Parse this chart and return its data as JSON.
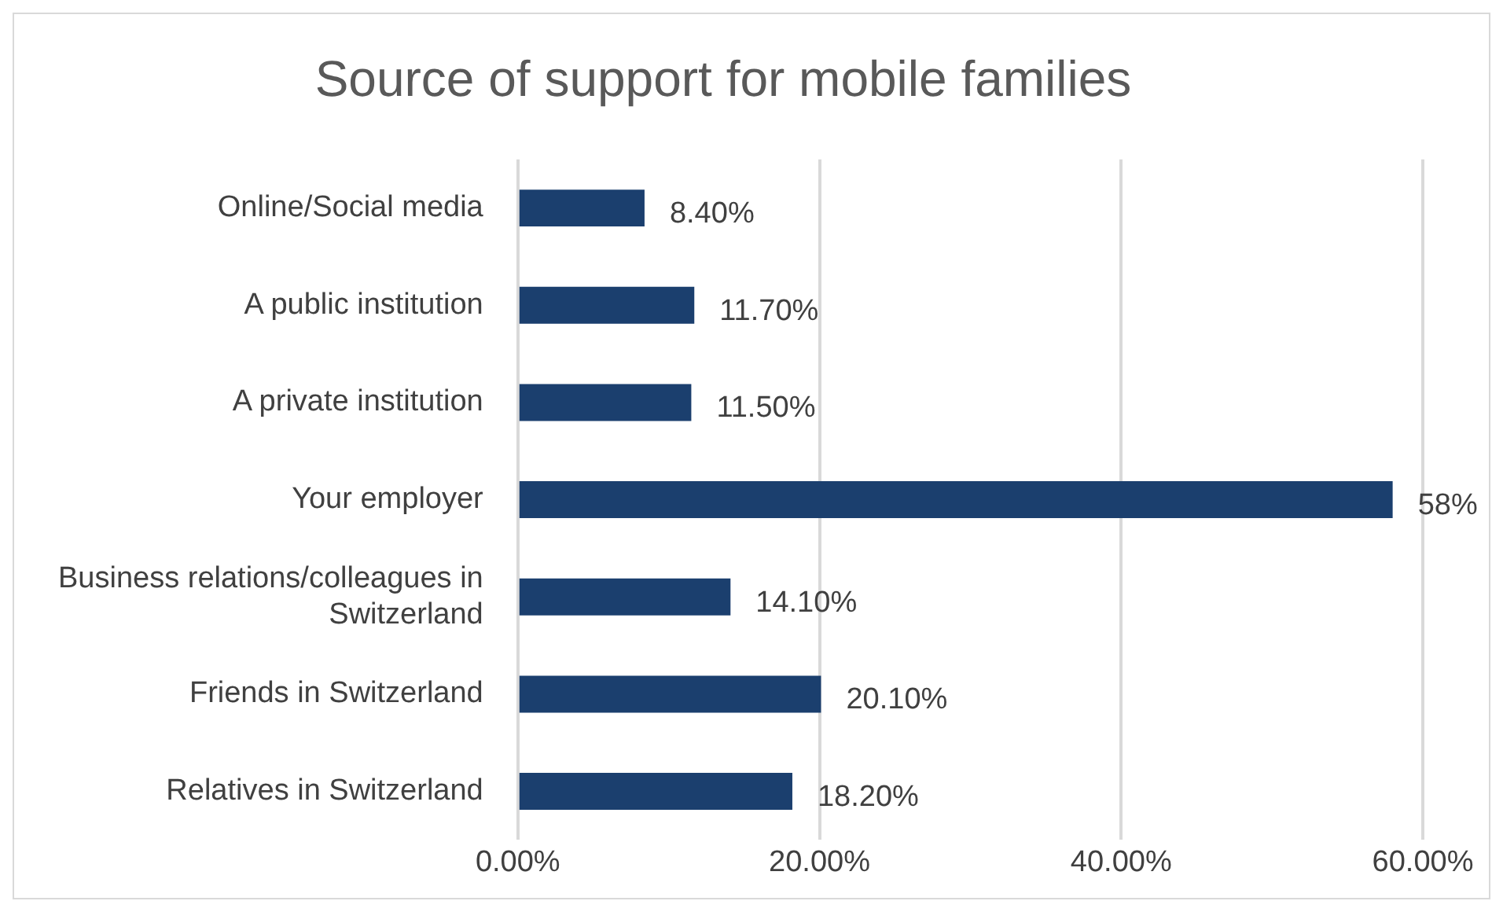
{
  "chart_data": {
    "type": "bar",
    "orientation": "horizontal",
    "title": "Source of support for mobile families",
    "categories": [
      "Online/Social media",
      "A public institution",
      "A private institution",
      "Your employer",
      "Business relations/colleagues in Switzerland",
      "Friends in Switzerland",
      "Relatives in Switzerland"
    ],
    "values": [
      8.4,
      11.7,
      11.5,
      58,
      14.1,
      20.1,
      18.2
    ],
    "value_labels": [
      "8.40%",
      "11.70%",
      "11.50%",
      "58%",
      "14.10%",
      "20.10%",
      "18.20%"
    ],
    "color": "#1b3f6e",
    "xlim": [
      0,
      60
    ],
    "xticks": [
      {
        "value": 0,
        "label": "0.00%"
      },
      {
        "value": 20,
        "label": "20.00%"
      },
      {
        "value": 40,
        "label": "40.00%"
      },
      {
        "value": 60,
        "label": "60.00%"
      }
    ],
    "grid": "x",
    "legend": false
  }
}
